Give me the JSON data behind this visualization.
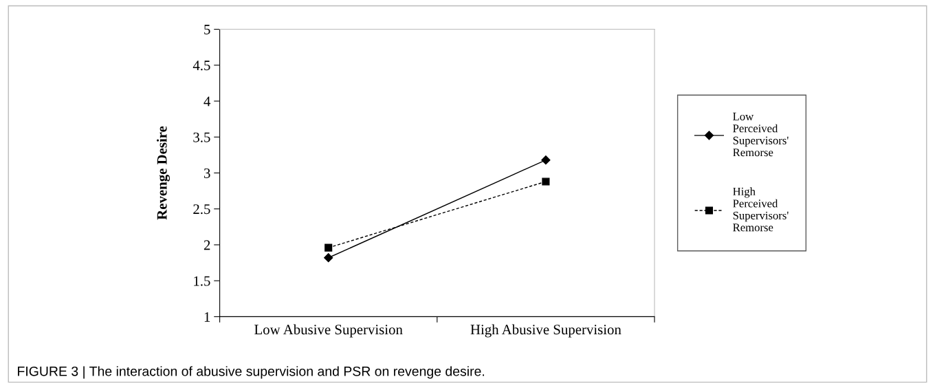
{
  "chart_data": {
    "type": "line",
    "ylabel": "Revenge Desire",
    "categories": [
      "Low Abusive Supervision",
      "High Abusive Supervision"
    ],
    "series": [
      {
        "name": "Low Perceived Supervisors' Remorse",
        "color": "#000000",
        "values": [
          1.82,
          3.18
        ],
        "marker": "diamond",
        "line_style": "solid"
      },
      {
        "name": "High Perceived Supervisors' Remorse",
        "color": "#000000",
        "values": [
          1.96,
          2.88
        ],
        "marker": "square",
        "line_style": "dashed"
      }
    ],
    "ylim": [
      1,
      5
    ],
    "yticks": [
      1,
      1.5,
      2,
      2.5,
      3,
      3.5,
      4,
      4.5,
      5
    ],
    "grid": false,
    "legend": "right",
    "annotations": [
      "FIGURE 3 | The interaction of abusive supervision and PSR on revenge desire."
    ]
  }
}
